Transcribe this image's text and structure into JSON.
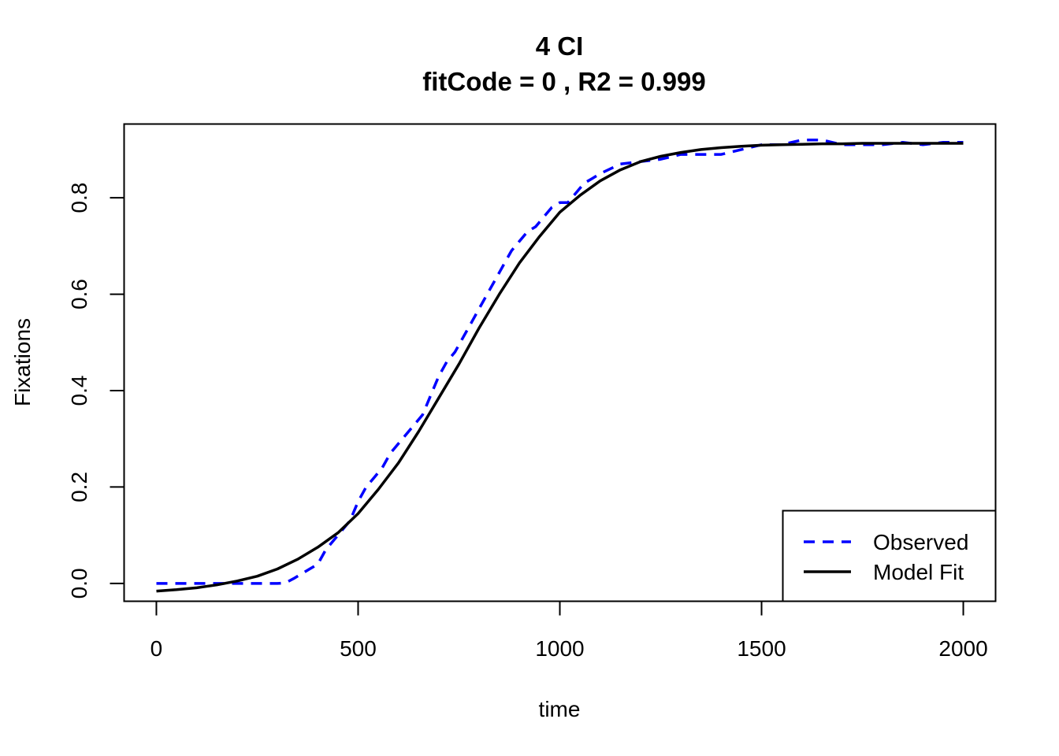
{
  "chart_data": {
    "type": "line",
    "title": "4 CI",
    "subtitle": "fitCode =  0 , R2 =  0.999",
    "xlabel": "time",
    "ylabel": "Fixations",
    "xlim": [
      -80,
      2080
    ],
    "ylim": [
      -0.037,
      0.953
    ],
    "x_ticks": [
      0,
      500,
      1000,
      1500,
      2000
    ],
    "x_tick_labels": [
      "0",
      "500",
      "1000",
      "1500",
      "2000"
    ],
    "y_ticks": [
      0.0,
      0.2,
      0.4,
      0.6,
      0.8
    ],
    "y_tick_labels": [
      "0.0",
      "0.2",
      "0.4",
      "0.6",
      "0.8"
    ],
    "legend_position": "bottom-right",
    "series": [
      {
        "name": "Observed",
        "color": "#0000ff",
        "style": "dashed",
        "x": [
          0,
          50,
          100,
          150,
          200,
          250,
          300,
          320,
          340,
          360,
          380,
          400,
          420,
          440,
          460,
          480,
          500,
          520,
          540,
          560,
          580,
          600,
          620,
          640,
          660,
          680,
          700,
          720,
          740,
          760,
          780,
          800,
          820,
          840,
          860,
          880,
          900,
          920,
          940,
          960,
          980,
          1000,
          1020,
          1040,
          1060,
          1080,
          1100,
          1150,
          1200,
          1250,
          1300,
          1350,
          1400,
          1450,
          1500,
          1550,
          1600,
          1650,
          1700,
          1750,
          1800,
          1850,
          1900,
          1950,
          2000
        ],
        "y": [
          0.0,
          0.0,
          0.0,
          0.0,
          0.0,
          0.0,
          0.0,
          0.001,
          0.01,
          0.02,
          0.03,
          0.04,
          0.07,
          0.09,
          0.11,
          0.13,
          0.17,
          0.2,
          0.22,
          0.24,
          0.27,
          0.29,
          0.31,
          0.33,
          0.35,
          0.39,
          0.43,
          0.46,
          0.48,
          0.51,
          0.54,
          0.57,
          0.6,
          0.63,
          0.66,
          0.69,
          0.71,
          0.73,
          0.74,
          0.76,
          0.78,
          0.79,
          0.79,
          0.81,
          0.83,
          0.84,
          0.85,
          0.87,
          0.875,
          0.88,
          0.89,
          0.89,
          0.89,
          0.9,
          0.91,
          0.91,
          0.92,
          0.92,
          0.91,
          0.91,
          0.91,
          0.915,
          0.91,
          0.915,
          0.915
        ]
      },
      {
        "name": "Model Fit",
        "color": "#000000",
        "style": "solid",
        "x": [
          0,
          50,
          100,
          150,
          200,
          250,
          300,
          350,
          400,
          450,
          500,
          550,
          600,
          650,
          700,
          750,
          800,
          850,
          900,
          950,
          1000,
          1050,
          1100,
          1150,
          1200,
          1250,
          1300,
          1350,
          1400,
          1450,
          1500,
          1550,
          1600,
          1650,
          1700,
          1750,
          1800,
          1850,
          1900,
          1950,
          2000
        ],
        "y": [
          -0.016,
          -0.013,
          -0.009,
          -0.003,
          0.005,
          0.015,
          0.03,
          0.05,
          0.075,
          0.105,
          0.145,
          0.195,
          0.25,
          0.315,
          0.385,
          0.455,
          0.53,
          0.6,
          0.665,
          0.72,
          0.77,
          0.805,
          0.835,
          0.858,
          0.875,
          0.886,
          0.894,
          0.9,
          0.904,
          0.907,
          0.909,
          0.91,
          0.911,
          0.912,
          0.912,
          0.913,
          0.913,
          0.913,
          0.913,
          0.913,
          0.913
        ]
      }
    ]
  }
}
